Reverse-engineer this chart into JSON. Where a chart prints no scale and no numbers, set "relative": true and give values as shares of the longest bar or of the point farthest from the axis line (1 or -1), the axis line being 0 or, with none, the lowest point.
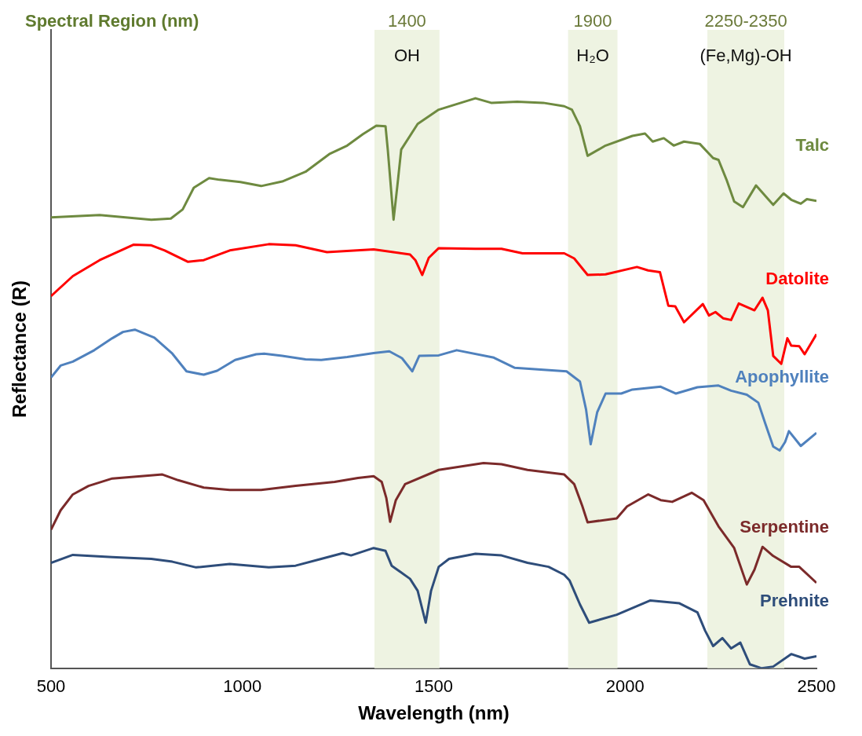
{
  "chart_data": {
    "type": "line",
    "title": "Spectral Region (nm)",
    "xlabel": "Wavelength (nm)",
    "ylabel": "Reflectance (R)",
    "relative": true,
    "xlim": [
      500,
      2500
    ],
    "xticks": [
      500,
      1000,
      1500,
      2000,
      2500
    ],
    "bands": [
      {
        "axis": "x",
        "from": 1345,
        "to": 1515,
        "label": "1400",
        "color": "#eef3e2"
      },
      {
        "axis": "x",
        "from": 1851,
        "to": 1980,
        "label": "1900",
        "color": "#eef3e2"
      },
      {
        "axis": "x",
        "from": 2215,
        "to": 2416,
        "label": "2250-2350",
        "color": "#eef3e2"
      }
    ],
    "annotations": [
      "OH",
      "H₂O",
      "(Fe,Mg)-OH"
    ],
    "series": [
      {
        "name": "Talc",
        "color": "#6e8a40",
        "x": [
          500,
          627,
          762,
          813,
          844,
          873,
          913,
          940,
          995,
          1049,
          1104,
          1165,
          1227,
          1274,
          1315,
          1350,
          1374,
          1380,
          1395,
          1405,
          1415,
          1458,
          1513,
          1609,
          1650,
          1718,
          1786,
          1841,
          1861,
          1882,
          1902,
          1949,
          2019,
          2052,
          2072,
          2101,
          2127,
          2154,
          2195,
          2230,
          2244,
          2265,
          2285,
          2308,
          2342,
          2387,
          2414,
          2434,
          2459,
          2475,
          2500
        ],
        "values": [
          0.791,
          0.795,
          0.787,
          0.789,
          0.805,
          0.843,
          0.86,
          0.857,
          0.853,
          0.846,
          0.854,
          0.871,
          0.902,
          0.917,
          0.937,
          0.952,
          0.951,
          0.909,
          0.787,
          0.847,
          0.91,
          0.955,
          0.98,
          1,
          0.992,
          0.994,
          0.992,
          0.986,
          0.98,
          0.951,
          0.899,
          0.917,
          0.934,
          0.938,
          0.924,
          0.93,
          0.917,
          0.924,
          0.92,
          0.895,
          0.892,
          0.857,
          0.819,
          0.809,
          0.847,
          0.813,
          0.833,
          0.822,
          0.815,
          0.823,
          0.82
        ]
      },
      {
        "name": "Datolite",
        "color": "#ff0000",
        "x": [
          500,
          557,
          627,
          715,
          762,
          797,
          858,
          899,
          967,
          1069,
          1139,
          1221,
          1343,
          1438,
          1452,
          1470,
          1487,
          1513,
          1609,
          1677,
          1732,
          1841,
          1867,
          1902,
          1949,
          2031,
          2060,
          2091,
          2113,
          2131,
          2154,
          2203,
          2219,
          2236,
          2256,
          2277,
          2297,
          2338,
          2359,
          2373,
          2387,
          2408,
          2424,
          2434,
          2455,
          2469,
          2500
        ],
        "values": [
          0.653,
          0.688,
          0.716,
          0.743,
          0.742,
          0.733,
          0.713,
          0.716,
          0.733,
          0.744,
          0.742,
          0.73,
          0.735,
          0.726,
          0.716,
          0.69,
          0.72,
          0.737,
          0.736,
          0.736,
          0.728,
          0.728,
          0.719,
          0.69,
          0.691,
          0.704,
          0.698,
          0.695,
          0.636,
          0.635,
          0.607,
          0.639,
          0.619,
          0.625,
          0.614,
          0.611,
          0.64,
          0.628,
          0.65,
          0.628,
          0.548,
          0.534,
          0.579,
          0.566,
          0.565,
          0.551,
          0.586
        ]
      },
      {
        "name": "Apophyllite",
        "color": "#4f81bd",
        "x": [
          500,
          525,
          557,
          613,
          660,
          688,
          719,
          770,
          817,
          854,
          899,
          934,
          981,
          1036,
          1057,
          1104,
          1165,
          1206,
          1274,
          1343,
          1384,
          1417,
          1444,
          1462,
          1513,
          1560,
          1657,
          1712,
          1779,
          1847,
          1882,
          1898,
          1910,
          1927,
          1949,
          1990,
          2019,
          2093,
          2133,
          2189,
          2244,
          2277,
          2318,
          2348,
          2367,
          2387,
          2404,
          2418,
          2428,
          2459,
          2500
        ],
        "values": [
          0.51,
          0.531,
          0.538,
          0.558,
          0.579,
          0.59,
          0.594,
          0.58,
          0.552,
          0.521,
          0.515,
          0.522,
          0.541,
          0.551,
          0.552,
          0.548,
          0.542,
          0.541,
          0.546,
          0.553,
          0.556,
          0.544,
          0.521,
          0.548,
          0.549,
          0.558,
          0.545,
          0.527,
          0.524,
          0.521,
          0.503,
          0.454,
          0.393,
          0.449,
          0.482,
          0.482,
          0.489,
          0.494,
          0.482,
          0.493,
          0.496,
          0.487,
          0.48,
          0.466,
          0.428,
          0.389,
          0.382,
          0.397,
          0.416,
          0.39,
          0.413
        ]
      },
      {
        "name": "Serpentine",
        "color": "#7b2a2a",
        "x": [
          500,
          525,
          557,
          598,
          660,
          735,
          791,
          832,
          899,
          967,
          1049,
          1139,
          1241,
          1302,
          1343,
          1364,
          1376,
          1386,
          1401,
          1425,
          1513,
          1630,
          1677,
          1745,
          1841,
          1867,
          1888,
          1902,
          1978,
          2005,
          2060,
          2093,
          2123,
          2174,
          2205,
          2244,
          2285,
          2318,
          2338,
          2359,
          2387,
          2434,
          2455,
          2500
        ],
        "values": [
          0.243,
          0.277,
          0.305,
          0.32,
          0.333,
          0.337,
          0.34,
          0.33,
          0.317,
          0.313,
          0.313,
          0.32,
          0.327,
          0.334,
          0.337,
          0.327,
          0.299,
          0.257,
          0.295,
          0.323,
          0.348,
          0.36,
          0.358,
          0.348,
          0.34,
          0.323,
          0.285,
          0.256,
          0.263,
          0.284,
          0.305,
          0.295,
          0.292,
          0.308,
          0.295,
          0.249,
          0.211,
          0.147,
          0.173,
          0.213,
          0.197,
          0.178,
          0.178,
          0.15
        ]
      },
      {
        "name": "Prehnite",
        "color": "#2e4d7a",
        "x": [
          500,
          557,
          660,
          762,
          817,
          879,
          967,
          1069,
          1139,
          1206,
          1262,
          1284,
          1343,
          1374,
          1390,
          1438,
          1458,
          1479,
          1493,
          1513,
          1540,
          1609,
          1677,
          1745,
          1800,
          1841,
          1855,
          1882,
          1906,
          1978,
          2066,
          2142,
          2189,
          2209,
          2230,
          2254,
          2277,
          2301,
          2326,
          2357,
          2387,
          2434,
          2469,
          2500
        ],
        "values": [
          0.185,
          0.199,
          0.195,
          0.192,
          0.187,
          0.177,
          0.183,
          0.177,
          0.18,
          0.192,
          0.202,
          0.198,
          0.211,
          0.206,
          0.18,
          0.157,
          0.136,
          0.08,
          0.136,
          0.178,
          0.192,
          0.201,
          0.198,
          0.185,
          0.178,
          0.164,
          0.154,
          0.112,
          0.08,
          0.094,
          0.119,
          0.114,
          0.098,
          0.066,
          0.039,
          0.053,
          0.035,
          0.045,
          0.007,
          0,
          0.003,
          0.025,
          0.017,
          0.021
        ]
      }
    ]
  }
}
